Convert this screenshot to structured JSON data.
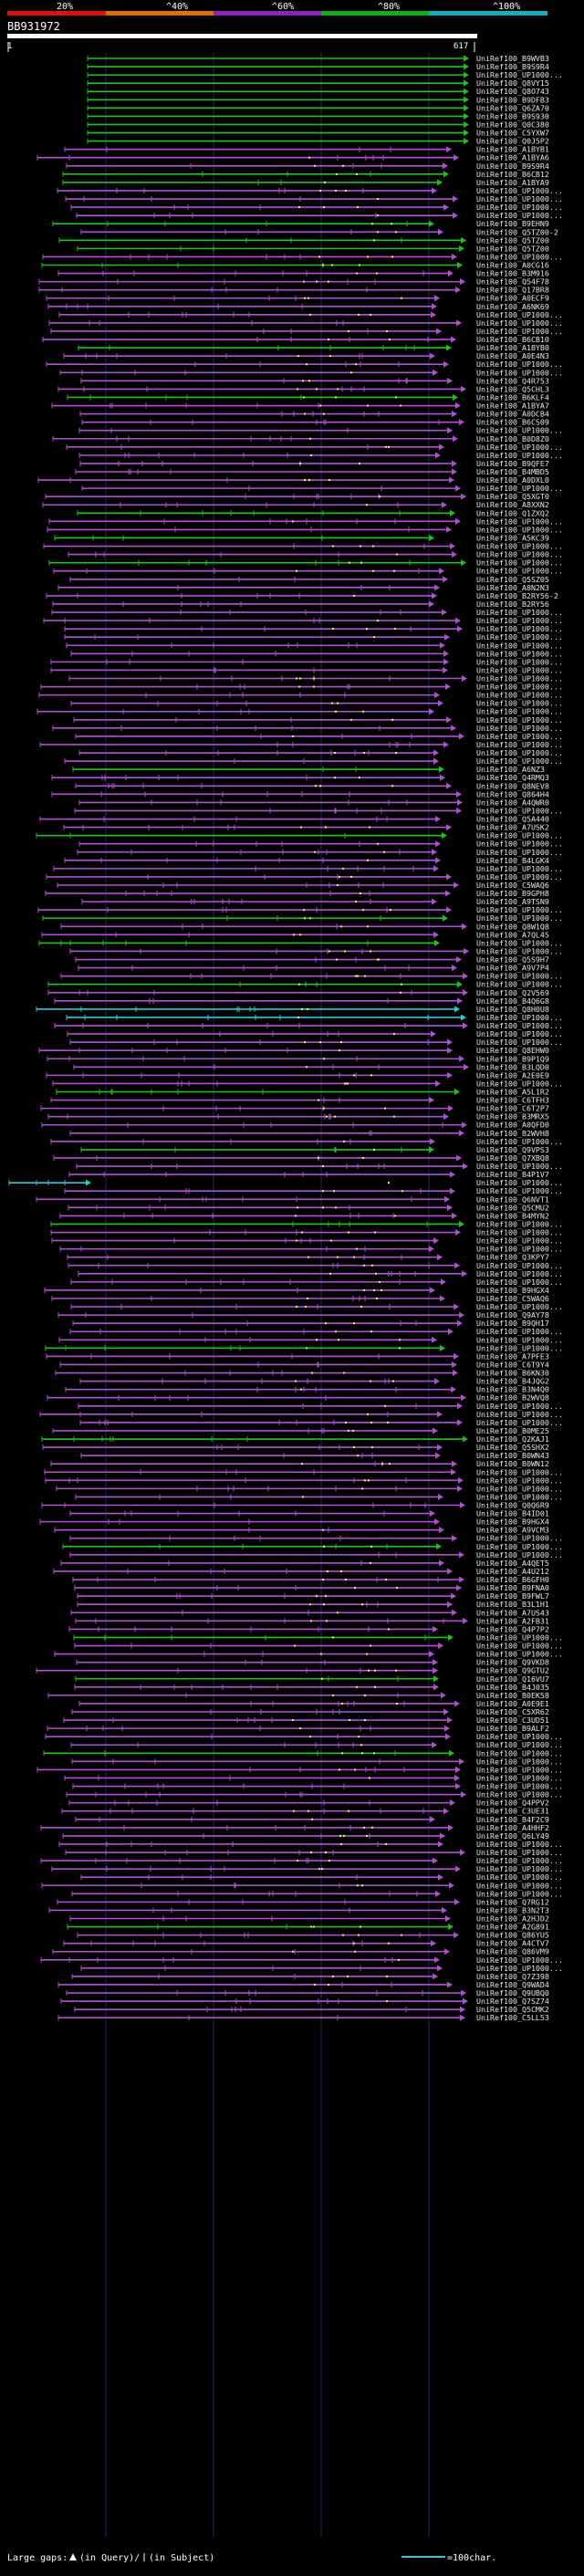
{
  "header": {
    "identity_scale": [
      {
        "label": "20%",
        "color": "#e01010"
      },
      {
        "label": "^40%",
        "color": "#e07000"
      },
      {
        "label": "^60%",
        "color": "#9020c0"
      },
      {
        "label": "^80%",
        "color": "#10b010"
      },
      {
        "label": "^100%",
        "color": "#10b0c0"
      }
    ],
    "query_id": "BB931972",
    "ruler_start": "1",
    "ruler_end": "617"
  },
  "hits": [
    "UniRef100_B9WVB3",
    "UniRef100_B9S9R4",
    "UniRef100_UP1000...",
    "UniRef100_Q8VY15",
    "UniRef100_Q8O743",
    "UniRef100_B9DFB3",
    "UniRef100_Q6ZA70",
    "UniRef100_B9S930",
    "UniRef100_Q0C380",
    "UniRef100_C5YXW7",
    "UniRef100_Q0J5P2",
    "UniRef100_A1BYB1",
    "UniRef100_A1BYA6",
    "UniRef100_B9S9R4",
    "UniRef100_B6CB12",
    "UniRef100_A1BYA9",
    "UniRef100_UP1000...",
    "UniRef100_UP1000...",
    "UniRef100_UP1000...",
    "UniRef100_UP1000...",
    "UniRef100_B9EHN9",
    "UniRef100_Q5TZ00-2",
    "UniRef100_Q5TZ00",
    "UniRef100_Q5TZ00",
    "UniRef100_UP1000...",
    "UniRef100_A0CG16",
    "UniRef100_B3M916",
    "UniRef100_Q54F78",
    "UniRef100_Q17BR8",
    "UniRef100_A0ECF9",
    "UniRef100_A6NK69",
    "UniRef100_UP1000...",
    "UniRef100_UP1000...",
    "UniRef100_UP1000...",
    "UniRef100_B6CB10",
    "UniRef100_A1BYB0",
    "UniRef100_A0E4N3",
    "UniRef100_UP1000...",
    "UniRef100_UP1000...",
    "UniRef100_Q4R753",
    "UniRef100_Q5CHL3",
    "UniRef100_B6KLF4",
    "UniRef100_A1BYA7",
    "UniRef100_A0DCB4",
    "UniRef100_B6CS09",
    "UniRef100_UP1000...",
    "UniRef100_B0D8Z0",
    "UniRef100_UP1000...",
    "UniRef100_UP1000...",
    "UniRef100_B9QFE7",
    "UniRef100_B4MBD5",
    "UniRef100_A0DXL0",
    "UniRef100_UP1000...",
    "UniRef100_Q5XGT0",
    "UniRef100_A8XXN2",
    "UniRef100_Q1ZXQ2",
    "UniRef100_UP1000...",
    "UniRef100_UP1000...",
    "UniRef100_A5KC39",
    "UniRef100_UP1000...",
    "UniRef100_UP1000...",
    "UniRef100_UP1000...",
    "UniRef100_UP1000...",
    "UniRef100_Q5SZ05",
    "UniRef100_A8N2N3",
    "UniRef100_B2RY56-2",
    "UniRef100_B2RY56",
    "UniRef100_UP1000...",
    "UniRef100_UP1000...",
    "UniRef100_UP1000...",
    "UniRef100_UP1000...",
    "UniRef100_UP1000...",
    "UniRef100_UP1000...",
    "UniRef100_UP1000...",
    "UniRef100_UP1000...",
    "UniRef100_UP1000...",
    "UniRef100_UP1000...",
    "UniRef100_UP1000...",
    "UniRef100_UP1000...",
    "UniRef100_UP1000...",
    "UniRef100_UP1000...",
    "UniRef100_UP1000...",
    "UniRef100_UP1000...",
    "UniRef100_UP1000...",
    "UniRef100_UP1000...",
    "UniRef100_UP1000...",
    "UniRef100_A6NZ3",
    "UniRef100_Q4RMQ3",
    "UniRef100_Q8NEV8",
    "UniRef100_Q864H4",
    "UniRef100_A4QWR0",
    "UniRef100_UP1000...",
    "UniRef100_Q5A440",
    "UniRef100_A7USK2",
    "UniRef100_UP1000...",
    "UniRef100_UP1000...",
    "UniRef100_UP1000...",
    "UniRef100_B4LGK4",
    "UniRef100_UP1000...",
    "UniRef100_UP1000...",
    "UniRef100_C5WAQ6",
    "UniRef100_B9GPH8",
    "UniRef100_A9TSN9",
    "UniRef100_UP1000...",
    "UniRef100_UP1000...",
    "UniRef100_Q8W1Q8",
    "UniRef100_A7QL45",
    "UniRef100_UP1000...",
    "UniRef100_UP1000...",
    "UniRef100_Q5S9H7",
    "UniRef100_A9V7P4",
    "UniRef100_UP1000...",
    "UniRef100_UP1000...",
    "UniRef100_Q2V569",
    "UniRef100_B4Q6G8",
    "UniRef100_Q8H0U8",
    "UniRef100_UP1000...",
    "UniRef100_UP1000...",
    "UniRef100_UP1000...",
    "UniRef100_UP1000...",
    "UniRef100_Q8EHW0",
    "UniRef100_B9P1Q9",
    "UniRef100_B3LQD0",
    "UniRef100_A2E0E9",
    "UniRef100_UP1000...",
    "UniRef100_A5L1R2",
    "UniRef100_C6TFH3",
    "UniRef100_C6T2P7",
    "UniRef100_B3MRX5",
    "UniRef100_A0QFD0",
    "UniRef100_B2WVH8",
    "UniRef100_UP1000...",
    "UniRef100_Q9VPS3",
    "UniRef100_Q7XBQ8",
    "UniRef100_UP1000...",
    "UniRef100_B4P1V7",
    "UniRef100_UP1000...",
    "UniRef100_UP1000...",
    "UniRef100_Q6NVT1",
    "UniRef100_Q5CMU2",
    "UniRef100_B4MYN2",
    "UniRef100_UP1000...",
    "UniRef100_UP1000...",
    "UniRef100_UP1000...",
    "UniRef100_UP1000...",
    "UniRef100_Q3KPY7",
    "UniRef100_UP1000...",
    "UniRef100_UP1000...",
    "UniRef100_UP1000...",
    "UniRef100_B9HGX4",
    "UniRef100_C5WAQ6",
    "UniRef100_UP1000...",
    "UniRef100_Q9AY78",
    "UniRef100_B9QH17",
    "UniRef100_UP1000...",
    "UniRef100_UP1000...",
    "UniRef100_UP1000...",
    "UniRef100_A7PFE3",
    "UniRef100_C6T9Y4",
    "UniRef100_B6KN30",
    "UniRef100_B4JQG2",
    "UniRef100_B3N4Q0",
    "UniRef100_B2WVQ8",
    "UniRef100_UP1000...",
    "UniRef100_UP1000...",
    "UniRef100_UP1000...",
    "UniRef100_B0ME25",
    "UniRef100_Q2KAJ1",
    "UniRef100_Q5SHX2",
    "UniRef100_B0WN43",
    "UniRef100_B0WN12",
    "UniRef100_UP1000...",
    "UniRef100_UP1000...",
    "UniRef100_UP1000...",
    "UniRef100_UP1000...",
    "UniRef100_Q0Q6R9",
    "UniRef100_B4ID01",
    "UniRef100_B9HGX4",
    "UniRef100_A9VCM3",
    "UniRef100_UP1000...",
    "UniRef100_UP1000...",
    "UniRef100_UP1000...",
    "UniRef100_A4QET5",
    "UniRef100_A4U212",
    "UniRef100_B6GFH0",
    "UniRef100_B9FNA0",
    "UniRef100_B9FWL7",
    "UniRef100_B3L1H1",
    "UniRef100_A7US43",
    "UniRef100_A2FB31",
    "UniRef100_Q4P7P2",
    "UniRef100_UP1000...",
    "UniRef100_UP1000...",
    "UniRef100_UP1000...",
    "UniRef100_Q9VKD8",
    "UniRef100_Q9GTU2",
    "UniRef100_Q16VU7",
    "UniRef100_B4J035",
    "UniRef100_B0EK58",
    "UniRef100_A0E9E1",
    "UniRef100_C5XR62",
    "UniRef100_C3UD51",
    "UniRef100_B9ALF2",
    "UniRef100_UP1000...",
    "UniRef100_UP1000...",
    "UniRef100_UP1000...",
    "UniRef100_UP1000...",
    "UniRef100_UP1000...",
    "UniRef100_UP1000...",
    "UniRef100_UP1000...",
    "UniRef100_UP1000...",
    "UniRef100_Q4PPV2",
    "UniRef100_C3UE31",
    "UniRef100_B4F2C9",
    "UniRef100_A4HHF2",
    "UniRef100_Q6LY49",
    "UniRef100_UP1000...",
    "UniRef100_UP1000...",
    "UniRef100_UP1000...",
    "UniRef100_UP1000...",
    "UniRef100_UP1000...",
    "UniRef100_UP1000...",
    "UniRef100_UP1000...",
    "UniRef100_Q7RG12",
    "UniRef100_B3N2T3",
    "UniRef100_A2HJD2",
    "UniRef100_A2G891",
    "UniRef100_Q86YU5",
    "UniRef100_A4CTV7",
    "UniRef100_Q86VM9",
    "UniRef100_UP1000...",
    "UniRef100_UP1000...",
    "UniRef100_Q7Z398",
    "UniRef100_Q9WAD4",
    "UniRef100_Q9UBQ0",
    "UniRef100_Q7SZ74",
    "UniRef100_Q5CMK2",
    "UniRef100_C5LL53"
  ],
  "legend": {
    "large_gaps_label": "Large gaps:",
    "query_gap_label": "(in Query)/",
    "subject_gap_label": "(in Subject)",
    "scale_label": "=100char."
  },
  "colors": {
    "background": "#000000",
    "pct_60_80": "#b050d0",
    "pct_80_100": "#20c020",
    "pct_100": "#30c8d8",
    "query_bar": "#ffffff",
    "grid": "#1f2a66",
    "label": "#e8e8e8",
    "gap_marker": "#f0f080"
  }
}
